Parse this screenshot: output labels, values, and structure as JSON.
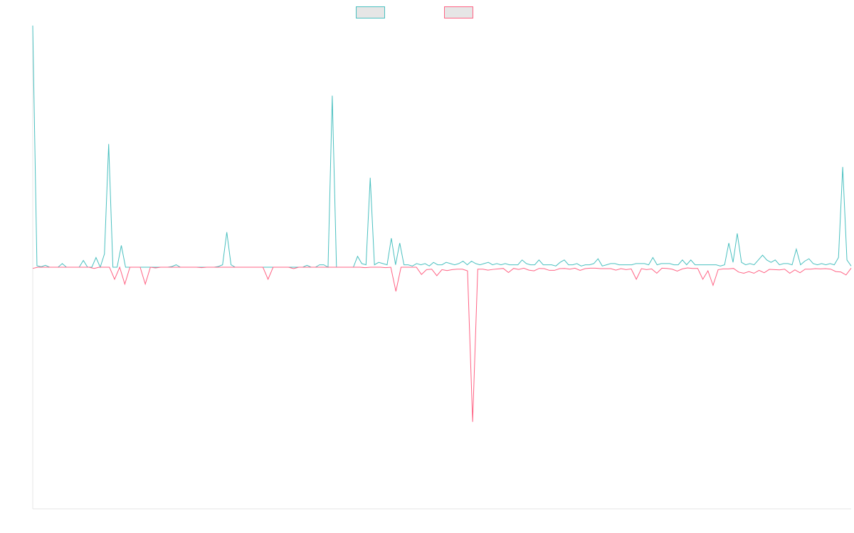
{
  "chart_data": {
    "type": "line",
    "title": "",
    "xlabel": "",
    "ylabel": "",
    "grid": false,
    "legend_position": "top-center",
    "ylim": [
      -100,
      100
    ],
    "series": [
      {
        "color": "#4bc0c0",
        "legend_fill": "#e6e6e6",
        "values": [
          100,
          0.6,
          0.2,
          0.8,
          0,
          0,
          0,
          1.5,
          0,
          0,
          0,
          0,
          2.8,
          0,
          0,
          4,
          0,
          5.5,
          51,
          0,
          0,
          9,
          0,
          0,
          0,
          0,
          0,
          0,
          0,
          0,
          0,
          0,
          0,
          0.3,
          1,
          0,
          0,
          0,
          0,
          0,
          0,
          0,
          0,
          0,
          0.3,
          1,
          14.5,
          1,
          0,
          0,
          0,
          0,
          0,
          0,
          0,
          0,
          0,
          0,
          0,
          0,
          0,
          0,
          0,
          0,
          0,
          0.8,
          0,
          0,
          1,
          1,
          0,
          71,
          0,
          0,
          0,
          0,
          0,
          4.5,
          1.5,
          1,
          37,
          1,
          2,
          1.5,
          1,
          12,
          1,
          10,
          1,
          1,
          0.5,
          1.5,
          1,
          1.5,
          0.5,
          2,
          1,
          1,
          2,
          1.5,
          1,
          1.5,
          2.5,
          1,
          2.5,
          1.5,
          1,
          1.5,
          2,
          1,
          1.5,
          1,
          1.5,
          1,
          1,
          1,
          3,
          1.5,
          1,
          1,
          3,
          1,
          1,
          1,
          0.5,
          2,
          3,
          1,
          1,
          1.5,
          0.5,
          1,
          1,
          1.5,
          3.5,
          0.5,
          1,
          1.5,
          1.5,
          1,
          1,
          1,
          1,
          1.5,
          1.5,
          1.5,
          1,
          4,
          1,
          1.5,
          1.5,
          1.5,
          1,
          1,
          3,
          1,
          3,
          1,
          1,
          1,
          1,
          1,
          1,
          0.5,
          1,
          10,
          2,
          14,
          2,
          1,
          1.5,
          1,
          3,
          5,
          3,
          2,
          3,
          1,
          1.5,
          1.5,
          1,
          7.5,
          1,
          2.5,
          3.5,
          1.5,
          1,
          1.5,
          1,
          1.5,
          1,
          4,
          41.5,
          3,
          0.5
        ]
      },
      {
        "color": "#ff6384",
        "legend_fill": "#e6e6e6",
        "values": [
          -0.5,
          0,
          0,
          0,
          0,
          0,
          0,
          0,
          0,
          0,
          0,
          0,
          -0.5,
          0,
          0,
          0,
          -5,
          0,
          -7,
          0,
          0,
          0,
          -7,
          0,
          -0.3,
          0,
          0,
          0,
          0,
          0,
          0,
          0,
          0,
          -0.2,
          0,
          0,
          0,
          0,
          0,
          0,
          0,
          0,
          0,
          0,
          0,
          0,
          -5,
          0,
          0,
          0,
          0,
          -0.6,
          0,
          0,
          0,
          0,
          0,
          0,
          0,
          0,
          0,
          0,
          0,
          0,
          0,
          -0.2,
          0,
          0,
          0,
          -0.2,
          0,
          -10,
          0,
          0,
          0,
          0,
          -3,
          -1,
          -0.8,
          -3.5,
          -1,
          -1.4,
          -1,
          -0.8,
          -0.8,
          -1.5,
          -64,
          -0.8,
          -0.8,
          -1.2,
          -0.9,
          -0.7,
          -0.5,
          -2.2,
          -0.5,
          -0.9,
          -0.4,
          -1.2,
          -1.5,
          -0.5,
          -0.6,
          -1.3,
          -1.3,
          -0.6,
          -0.5,
          -0.8,
          -0.4,
          -1.3,
          -0.6,
          -0.4,
          -0.4,
          -0.6,
          -0.6,
          -0.6,
          -1.2,
          -0.6,
          -1,
          -0.7,
          -5,
          -0.6,
          -1,
          -0.7,
          -2.5,
          -0.4,
          -0.5,
          -0.8,
          -1.6,
          -0.7,
          -0.3,
          -0.5,
          -0.5,
          -5,
          -1.5,
          -7.5,
          -1,
          -0.7,
          -0.7,
          -0.5,
          -2,
          -2.5,
          -1.8,
          -2.5,
          -1.3,
          -2.3,
          -0.9,
          -1,
          -1.1,
          -0.8,
          -2.5,
          -1.1,
          -2.3,
          -0.8,
          -0.8,
          -0.6,
          -0.7,
          -0.6,
          -0.8,
          -1.8,
          -2,
          -3.2,
          -0.4
        ]
      }
    ]
  }
}
